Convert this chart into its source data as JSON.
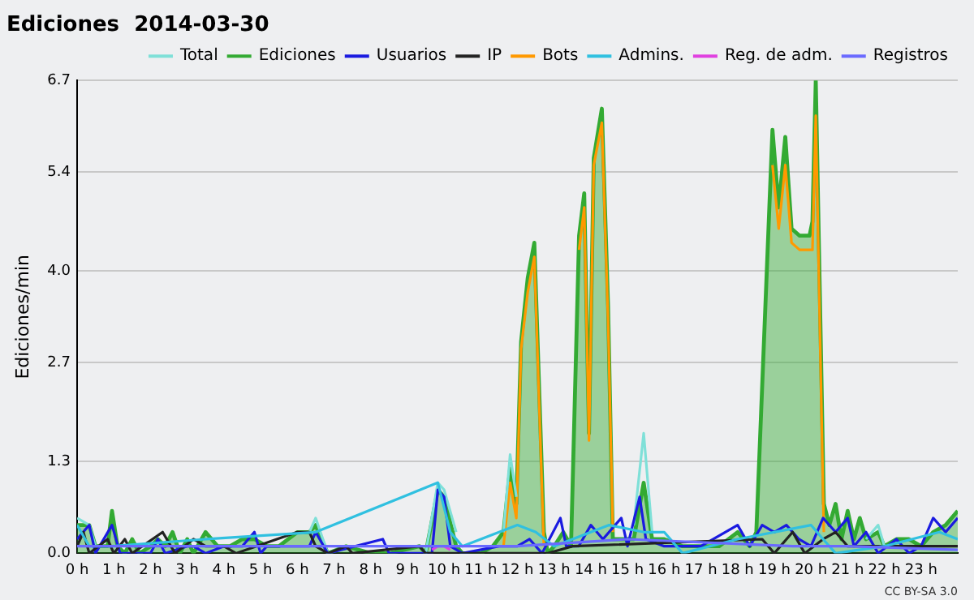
{
  "chart_data": {
    "type": "line",
    "title": "Ediciones  2014-03-30",
    "ylabel": "Ediciones/min",
    "xlim": [
      0,
      24
    ],
    "xticks": [
      {
        "value": 0,
        "label": "0 h"
      },
      {
        "value": 1,
        "label": "1 h"
      },
      {
        "value": 2,
        "label": "2 h"
      },
      {
        "value": 3,
        "label": "3 h"
      },
      {
        "value": 4,
        "label": "4 h"
      },
      {
        "value": 5,
        "label": "5 h"
      },
      {
        "value": 6,
        "label": "6 h"
      },
      {
        "value": 7,
        "label": "7 h"
      },
      {
        "value": 8,
        "label": "8 h"
      },
      {
        "value": 9,
        "label": "9 h"
      },
      {
        "value": 10,
        "label": "10 h"
      },
      {
        "value": 11,
        "label": "11 h"
      },
      {
        "value": 12,
        "label": "12 h"
      },
      {
        "value": 13,
        "label": "13 h"
      },
      {
        "value": 14,
        "label": "14 h"
      },
      {
        "value": 15,
        "label": "15 h"
      },
      {
        "value": 16,
        "label": "16 h"
      },
      {
        "value": 17,
        "label": "17 h"
      },
      {
        "value": 18,
        "label": "18 h"
      },
      {
        "value": 19,
        "label": "19 h"
      },
      {
        "value": 20,
        "label": "20 h"
      },
      {
        "value": 21,
        "label": "21 h"
      },
      {
        "value": 22,
        "label": "22 h"
      },
      {
        "value": 23,
        "label": "23 h"
      }
    ],
    "ylim": [
      0,
      6.7
    ],
    "yticks": [
      {
        "value": 0,
        "label": "0.0"
      },
      1.3,
      2.7,
      {
        "value": 4,
        "label": "4.0"
      },
      5.4,
      6.7
    ],
    "grid": "y",
    "legend": "top right",
    "marker": "none",
    "line_style": "solid",
    "annotations": [
      "CC BY-SA 3.0"
    ],
    "series": [
      {
        "name": "Total",
        "color": "#7fe0d8",
        "x": [
          0,
          0.33,
          0.5,
          3.0,
          6.33,
          6.5,
          6.83,
          8.0,
          9.5,
          9.83,
          10.0,
          10.33,
          11.0,
          11.62,
          11.8,
          11.97,
          13.0,
          15.17,
          15.44,
          15.67,
          18.0,
          21.5,
          21.83,
          22.0
        ],
        "values": [
          0.5,
          0.4,
          0.1,
          null,
          0.3,
          0.5,
          0.0,
          null,
          0.0,
          1.0,
          0.9,
          0.3,
          null,
          0.3,
          1.4,
          0.8,
          null,
          0.4,
          1.7,
          0.3,
          null,
          0.2,
          0.4,
          0.1
        ]
      },
      {
        "name": "Ediciones",
        "type": "area",
        "color": "#33aa33",
        "x": [
          0,
          0.33,
          0.5,
          0.83,
          0.95,
          1.1,
          1.3,
          1.5,
          1.7,
          2.0,
          2.2,
          2.4,
          2.6,
          2.8,
          3.0,
          3.17,
          3.5,
          3.83,
          4.17,
          4.5,
          4.83,
          5.17,
          5.5,
          6.0,
          6.33,
          6.5,
          6.83,
          7.33,
          8.0,
          8.5,
          9.33,
          9.5,
          9.83,
          10.0,
          10.33,
          10.5,
          11.0,
          11.33,
          11.62,
          11.8,
          11.97,
          12.1,
          12.28,
          12.46,
          12.72,
          12.83,
          13.0,
          13.25,
          13.46,
          13.68,
          13.82,
          13.95,
          14.08,
          14.3,
          14.47,
          14.6,
          14.83,
          15.17,
          15.44,
          15.67,
          16.0,
          16.5,
          17.0,
          17.5,
          18.0,
          18.33,
          18.51,
          18.95,
          19.12,
          19.3,
          19.47,
          19.69,
          19.96,
          20.04,
          20.13,
          20.35,
          20.5,
          20.67,
          20.83,
          21.0,
          21.17,
          21.33,
          21.5,
          21.83,
          22.0,
          22.33,
          22.67,
          23.0,
          23.33,
          23.67,
          24
        ],
        "values": [
          0.4,
          0.4,
          0.1,
          0.1,
          0.6,
          0.1,
          0.0,
          0.2,
          0.0,
          0.1,
          0.2,
          0.1,
          0.3,
          0.0,
          0.2,
          0.0,
          0.3,
          0.1,
          0.1,
          0.2,
          0.2,
          0.1,
          0.1,
          0.3,
          0.3,
          0.4,
          0.0,
          0.1,
          0.0,
          0.0,
          0.1,
          0.0,
          0.9,
          0.8,
          0.1,
          0.0,
          0.0,
          0.1,
          0.3,
          1.2,
          0.7,
          3.0,
          3.9,
          4.4,
          0.3,
          0.0,
          0.1,
          0.3,
          0.1,
          4.5,
          5.1,
          1.7,
          5.6,
          6.3,
          3.5,
          0.2,
          0.2,
          0.2,
          1.0,
          0.2,
          0.2,
          0.1,
          0.1,
          0.1,
          0.3,
          0.1,
          0.3,
          6.0,
          4.9,
          5.9,
          4.6,
          4.5,
          4.5,
          4.7,
          6.7,
          0.7,
          0.4,
          0.7,
          0.2,
          0.6,
          0.2,
          0.5,
          0.2,
          0.3,
          0.1,
          0.2,
          0.2,
          0.1,
          0.3,
          0.4,
          0.6
        ]
      },
      {
        "name": "Usuarios",
        "color": "#1a1ae0",
        "x": [
          0,
          0.33,
          0.5,
          0.95,
          1.17,
          2.0,
          2.2,
          2.4,
          3.0,
          3.17,
          3.5,
          4.0,
          4.5,
          4.83,
          5.0,
          5.17,
          5.5,
          6.33,
          6.5,
          6.83,
          8.33,
          8.5,
          9.67,
          9.83,
          10.0,
          10.17,
          10.5,
          11.5,
          12.0,
          12.33,
          12.67,
          13.17,
          13.33,
          13.67,
          14.0,
          14.33,
          14.83,
          15.0,
          15.33,
          15.5,
          16.0,
          17.0,
          18.0,
          18.33,
          18.67,
          19.0,
          19.33,
          19.67,
          20.0,
          20.33,
          20.67,
          21.0,
          21.17,
          21.5,
          21.83,
          22.33,
          22.67,
          23.0,
          23.33,
          23.67,
          24
        ],
        "values": [
          0.2,
          0.4,
          0.0,
          0.4,
          0.0,
          0.0,
          0.2,
          0.0,
          0.1,
          0.1,
          0.0,
          0.1,
          0.1,
          0.3,
          0.0,
          0.1,
          0.1,
          0.1,
          0.3,
          0.0,
          0.2,
          0.0,
          0.0,
          0.9,
          0.8,
          0.1,
          0.0,
          0.1,
          0.1,
          0.2,
          0.0,
          0.5,
          0.1,
          0.1,
          0.4,
          0.2,
          0.5,
          0.1,
          0.8,
          0.2,
          0.1,
          0.1,
          0.4,
          0.1,
          0.4,
          0.3,
          0.4,
          0.2,
          0.1,
          0.5,
          0.3,
          0.5,
          0.1,
          0.3,
          0.0,
          0.2,
          0.0,
          0.1,
          0.5,
          0.3,
          0.5
        ]
      },
      {
        "name": "IP",
        "color": "#222222",
        "x": [
          0,
          0.17,
          0.33,
          0.83,
          1.0,
          1.3,
          1.5,
          2.33,
          2.67,
          3.17,
          3.5,
          4.0,
          4.33,
          6.0,
          6.33,
          6.5,
          6.83,
          7.33,
          7.5,
          9.33,
          9.5,
          10.5,
          12.83,
          13.5,
          18.67,
          19.0,
          19.5,
          19.83,
          20.33,
          20.67,
          21.0,
          22.5,
          23.0,
          24
        ],
        "values": [
          0.1,
          0.3,
          0.0,
          0.2,
          0.0,
          0.2,
          0.0,
          0.3,
          0.0,
          0.2,
          0.1,
          0.1,
          0.0,
          0.3,
          0.3,
          0.1,
          0.0,
          0.1,
          0.0,
          0.1,
          0.0,
          0.0,
          0.0,
          0.1,
          0.2,
          0.0,
          0.3,
          0.0,
          0.2,
          0.3,
          0.1,
          0.1,
          0.1,
          0.1
        ]
      },
      {
        "name": "Bots",
        "color": "#ff9900",
        "x": [
          11.62,
          11.8,
          11.97,
          12.1,
          12.28,
          12.46,
          12.72,
          13.0,
          13.68,
          13.82,
          13.95,
          14.08,
          14.3,
          14.47,
          14.6,
          16.0,
          18.95,
          19.12,
          19.3,
          19.47,
          19.69,
          19.96,
          20.04,
          20.13,
          20.35
        ],
        "values": [
          0.1,
          1.0,
          0.5,
          2.9,
          3.7,
          4.2,
          0.1,
          null,
          4.3,
          4.9,
          1.6,
          5.5,
          6.1,
          3.3,
          0.3,
          null,
          5.5,
          4.6,
          5.5,
          4.4,
          4.3,
          4.3,
          4.3,
          6.2,
          0.3
        ]
      },
      {
        "name": "Admins.",
        "color": "#30c0e0",
        "x": [
          0,
          0.33,
          0.95,
          3.5,
          6.5,
          9.83,
          10.17,
          10.5,
          12.0,
          12.5,
          13.0,
          14.5,
          15.44,
          16.0,
          16.5,
          18.0,
          20.0,
          20.33,
          20.67,
          22.0,
          23.5,
          24
        ],
        "values": [
          0.4,
          0.1,
          0.1,
          0.2,
          0.3,
          1.0,
          0.3,
          0.1,
          0.4,
          0.3,
          0.1,
          0.4,
          0.3,
          0.3,
          0.0,
          0.2,
          0.4,
          0.2,
          0.0,
          0.1,
          0.3,
          0.2
        ]
      },
      {
        "name": "Reg. de adm.",
        "color": "#e040e0",
        "x": [
          9.67,
          9.83,
          10.0,
          10.17
        ],
        "values": [
          0.05,
          0.1,
          0.1,
          0.05
        ]
      },
      {
        "name": "Registros",
        "color": "#6a6aff",
        "x": [
          0,
          3.33,
          12.0,
          15.0,
          19.5,
          21.0,
          24
        ],
        "values": [
          0.1,
          0.1,
          0.1,
          0.2,
          0.1,
          0.1,
          0.05
        ]
      }
    ]
  }
}
